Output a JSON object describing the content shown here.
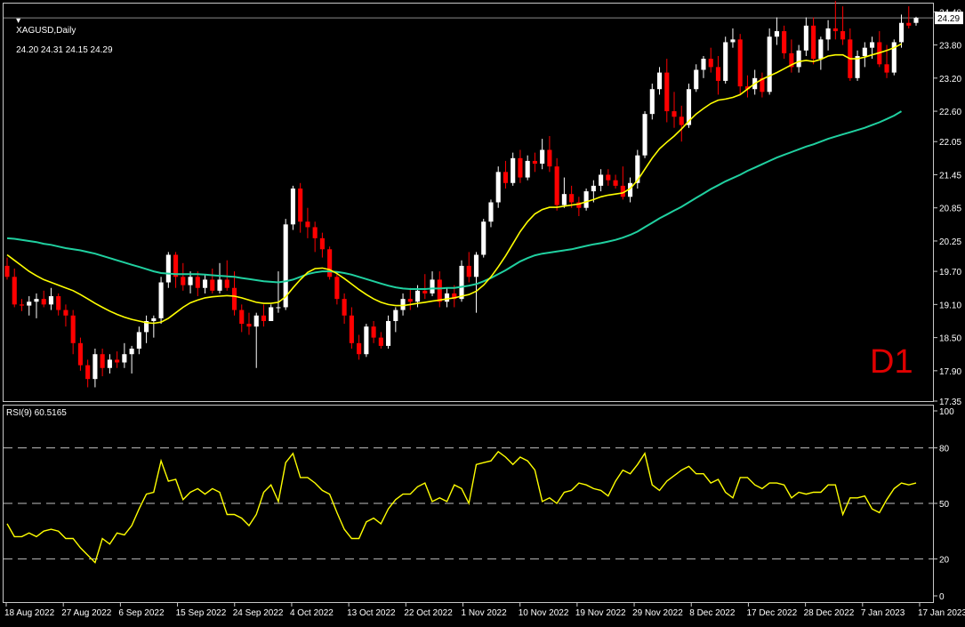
{
  "header": {
    "symbol": "XAGUSD,Daily",
    "ohlc": "24.20 24.31 24.15 24.29",
    "timeframe_mark": "D1"
  },
  "price_axis": {
    "ticks": [
      "24.40",
      "23.80",
      "23.20",
      "22.60",
      "22.05",
      "21.45",
      "20.85",
      "20.25",
      "19.70",
      "19.10",
      "18.50",
      "17.90",
      "17.35"
    ],
    "current_price": "24.29"
  },
  "rsi_panel": {
    "title": "RSI(9) 60.5165",
    "ticks": [
      "100",
      "80",
      "50",
      "20",
      "0"
    ]
  },
  "date_axis": [
    "18 Aug 2022",
    "27 Aug 2022",
    "6 Sep 2022",
    "15 Sep 2022",
    "24 Sep 2022",
    "4 Oct 2022",
    "13 Oct 2022",
    "22 Oct 2022",
    "1 Nov 2022",
    "10 Nov 2022",
    "19 Nov 2022",
    "29 Nov 2022",
    "8 Dec 2022",
    "17 Dec 2022",
    "28 Dec 2022",
    "7 Jan 2023",
    "17 Jan 2023"
  ],
  "colors": {
    "background": "#000000",
    "bull_candle": "#ffffff",
    "bear_candle": "#ff0000",
    "ma_fast": "#ffff00",
    "ma_slow": "#20d0a0",
    "rsi": "#ffff00",
    "grid_dash": "#c0c0c0",
    "axis_text": "#ffffff",
    "timeframe_mark": "#e00000"
  },
  "chart_data": {
    "type": "candlestick",
    "x_labels": [
      "18 Aug 2022",
      "27 Aug 2022",
      "6 Sep 2022",
      "15 Sep 2022",
      "24 Sep 2022",
      "4 Oct 2022",
      "13 Oct 2022",
      "22 Oct 2022",
      "1 Nov 2022",
      "10 Nov 2022",
      "19 Nov 2022",
      "29 Nov 2022",
      "8 Dec 2022",
      "17 Dec 2022",
      "28 Dec 2022",
      "7 Jan 2023",
      "17 Jan 2023"
    ],
    "ylim": [
      17.35,
      24.55
    ],
    "candles": [
      {
        "o": 19.8,
        "h": 19.95,
        "l": 19.55,
        "c": 19.6
      },
      {
        "o": 19.6,
        "h": 19.75,
        "l": 19.05,
        "c": 19.1
      },
      {
        "o": 19.1,
        "h": 19.2,
        "l": 18.98,
        "c": 19.08
      },
      {
        "o": 19.08,
        "h": 19.25,
        "l": 18.9,
        "c": 19.15
      },
      {
        "o": 19.15,
        "h": 19.3,
        "l": 18.85,
        "c": 19.2
      },
      {
        "o": 19.2,
        "h": 19.35,
        "l": 19.05,
        "c": 19.1
      },
      {
        "o": 19.1,
        "h": 19.4,
        "l": 19.0,
        "c": 19.25
      },
      {
        "o": 19.25,
        "h": 19.3,
        "l": 18.9,
        "c": 19.0
      },
      {
        "o": 19.0,
        "h": 19.1,
        "l": 18.7,
        "c": 18.9
      },
      {
        "o": 18.9,
        "h": 19.0,
        "l": 18.2,
        "c": 18.4
      },
      {
        "o": 18.4,
        "h": 18.5,
        "l": 17.9,
        "c": 18.0
      },
      {
        "o": 18.0,
        "h": 18.1,
        "l": 17.6,
        "c": 17.75
      },
      {
        "o": 17.75,
        "h": 18.3,
        "l": 17.6,
        "c": 18.2
      },
      {
        "o": 18.2,
        "h": 18.3,
        "l": 17.8,
        "c": 17.95
      },
      {
        "o": 17.95,
        "h": 18.2,
        "l": 17.85,
        "c": 18.1
      },
      {
        "o": 18.1,
        "h": 18.25,
        "l": 17.95,
        "c": 18.05
      },
      {
        "o": 18.05,
        "h": 18.4,
        "l": 17.95,
        "c": 18.2
      },
      {
        "o": 18.2,
        "h": 18.35,
        "l": 17.85,
        "c": 18.3
      },
      {
        "o": 18.3,
        "h": 18.7,
        "l": 18.2,
        "c": 18.6
      },
      {
        "o": 18.6,
        "h": 18.9,
        "l": 18.4,
        "c": 18.8
      },
      {
        "o": 18.8,
        "h": 18.9,
        "l": 18.5,
        "c": 18.85
      },
      {
        "o": 18.85,
        "h": 19.6,
        "l": 18.75,
        "c": 19.5
      },
      {
        "o": 19.5,
        "h": 20.05,
        "l": 19.4,
        "c": 20.0
      },
      {
        "o": 20.0,
        "h": 20.05,
        "l": 19.4,
        "c": 19.6
      },
      {
        "o": 19.6,
        "h": 19.85,
        "l": 19.35,
        "c": 19.45
      },
      {
        "o": 19.45,
        "h": 19.7,
        "l": 19.3,
        "c": 19.6
      },
      {
        "o": 19.6,
        "h": 19.7,
        "l": 19.25,
        "c": 19.4
      },
      {
        "o": 19.4,
        "h": 19.65,
        "l": 19.3,
        "c": 19.55
      },
      {
        "o": 19.55,
        "h": 19.75,
        "l": 19.3,
        "c": 19.35
      },
      {
        "o": 19.35,
        "h": 19.85,
        "l": 19.3,
        "c": 19.55
      },
      {
        "o": 19.55,
        "h": 19.9,
        "l": 19.35,
        "c": 19.4
      },
      {
        "o": 19.4,
        "h": 19.7,
        "l": 18.9,
        "c": 19.0
      },
      {
        "o": 19.0,
        "h": 19.1,
        "l": 18.6,
        "c": 18.75
      },
      {
        "o": 18.75,
        "h": 18.95,
        "l": 18.55,
        "c": 18.7
      },
      {
        "o": 18.7,
        "h": 18.95,
        "l": 17.95,
        "c": 18.9
      },
      {
        "o": 18.9,
        "h": 19.1,
        "l": 18.7,
        "c": 18.8
      },
      {
        "o": 18.8,
        "h": 19.1,
        "l": 18.8,
        "c": 19.05
      },
      {
        "o": 19.05,
        "h": 19.7,
        "l": 18.95,
        "c": 19.05
      },
      {
        "o": 19.05,
        "h": 20.65,
        "l": 19.0,
        "c": 20.55
      },
      {
        "o": 20.55,
        "h": 21.25,
        "l": 20.45,
        "c": 21.2
      },
      {
        "o": 21.2,
        "h": 21.3,
        "l": 20.4,
        "c": 20.6
      },
      {
        "o": 20.6,
        "h": 20.85,
        "l": 20.3,
        "c": 20.5
      },
      {
        "o": 20.5,
        "h": 20.6,
        "l": 20.05,
        "c": 20.3
      },
      {
        "o": 20.3,
        "h": 20.4,
        "l": 19.95,
        "c": 20.1
      },
      {
        "o": 20.1,
        "h": 20.15,
        "l": 19.55,
        "c": 19.6
      },
      {
        "o": 19.6,
        "h": 19.7,
        "l": 19.1,
        "c": 19.2
      },
      {
        "o": 19.2,
        "h": 19.3,
        "l": 18.75,
        "c": 18.9
      },
      {
        "o": 18.9,
        "h": 19.05,
        "l": 18.3,
        "c": 18.4
      },
      {
        "o": 18.4,
        "h": 18.55,
        "l": 18.1,
        "c": 18.2
      },
      {
        "o": 18.2,
        "h": 18.75,
        "l": 18.15,
        "c": 18.7
      },
      {
        "o": 18.7,
        "h": 18.8,
        "l": 18.4,
        "c": 18.5
      },
      {
        "o": 18.5,
        "h": 18.6,
        "l": 18.3,
        "c": 18.35
      },
      {
        "o": 18.35,
        "h": 18.9,
        "l": 18.3,
        "c": 18.8
      },
      {
        "o": 18.8,
        "h": 19.05,
        "l": 18.6,
        "c": 19.0
      },
      {
        "o": 19.0,
        "h": 19.3,
        "l": 18.9,
        "c": 19.2
      },
      {
        "o": 19.2,
        "h": 19.4,
        "l": 19.0,
        "c": 19.15
      },
      {
        "o": 19.15,
        "h": 19.45,
        "l": 19.05,
        "c": 19.35
      },
      {
        "o": 19.35,
        "h": 19.65,
        "l": 19.2,
        "c": 19.3
      },
      {
        "o": 19.3,
        "h": 19.7,
        "l": 19.25,
        "c": 19.55
      },
      {
        "o": 19.55,
        "h": 19.7,
        "l": 19.05,
        "c": 19.15
      },
      {
        "o": 19.15,
        "h": 19.4,
        "l": 19.05,
        "c": 19.3
      },
      {
        "o": 19.3,
        "h": 19.45,
        "l": 19.05,
        "c": 19.2
      },
      {
        "o": 19.2,
        "h": 19.9,
        "l": 19.15,
        "c": 19.8
      },
      {
        "o": 19.8,
        "h": 20.05,
        "l": 19.5,
        "c": 19.6
      },
      {
        "o": 19.6,
        "h": 20.05,
        "l": 18.95,
        "c": 20.0
      },
      {
        "o": 20.0,
        "h": 20.65,
        "l": 19.95,
        "c": 20.6
      },
      {
        "o": 20.6,
        "h": 21.0,
        "l": 20.5,
        "c": 20.95
      },
      {
        "o": 20.95,
        "h": 21.6,
        "l": 20.85,
        "c": 21.5
      },
      {
        "o": 21.5,
        "h": 21.7,
        "l": 21.2,
        "c": 21.3
      },
      {
        "o": 21.3,
        "h": 21.85,
        "l": 21.25,
        "c": 21.75
      },
      {
        "o": 21.75,
        "h": 21.9,
        "l": 21.3,
        "c": 21.4
      },
      {
        "o": 21.4,
        "h": 21.8,
        "l": 21.35,
        "c": 21.7
      },
      {
        "o": 21.7,
        "h": 21.85,
        "l": 21.5,
        "c": 21.65
      },
      {
        "o": 21.65,
        "h": 22.1,
        "l": 21.55,
        "c": 21.9
      },
      {
        "o": 21.9,
        "h": 22.15,
        "l": 21.5,
        "c": 21.6
      },
      {
        "o": 21.6,
        "h": 21.75,
        "l": 20.8,
        "c": 20.9
      },
      {
        "o": 20.9,
        "h": 21.4,
        "l": 20.85,
        "c": 21.1
      },
      {
        "o": 21.1,
        "h": 21.25,
        "l": 20.85,
        "c": 20.95
      },
      {
        "o": 20.95,
        "h": 21.05,
        "l": 20.7,
        "c": 20.85
      },
      {
        "o": 20.85,
        "h": 21.2,
        "l": 20.8,
        "c": 21.15
      },
      {
        "o": 21.15,
        "h": 21.35,
        "l": 20.95,
        "c": 21.25
      },
      {
        "o": 21.25,
        "h": 21.55,
        "l": 21.15,
        "c": 21.45
      },
      {
        "o": 21.45,
        "h": 21.55,
        "l": 21.25,
        "c": 21.35
      },
      {
        "o": 21.35,
        "h": 21.45,
        "l": 21.2,
        "c": 21.25
      },
      {
        "o": 21.25,
        "h": 21.6,
        "l": 21.0,
        "c": 21.05
      },
      {
        "o": 21.05,
        "h": 21.4,
        "l": 20.95,
        "c": 21.3
      },
      {
        "o": 21.3,
        "h": 21.9,
        "l": 21.2,
        "c": 21.8
      },
      {
        "o": 21.8,
        "h": 22.6,
        "l": 21.75,
        "c": 22.55
      },
      {
        "o": 22.55,
        "h": 23.1,
        "l": 22.45,
        "c": 23.0
      },
      {
        "o": 23.0,
        "h": 23.4,
        "l": 22.9,
        "c": 23.3
      },
      {
        "o": 23.3,
        "h": 23.55,
        "l": 22.4,
        "c": 22.6
      },
      {
        "o": 22.6,
        "h": 22.95,
        "l": 22.3,
        "c": 22.5
      },
      {
        "o": 22.5,
        "h": 22.7,
        "l": 22.05,
        "c": 22.35
      },
      {
        "o": 22.35,
        "h": 23.1,
        "l": 22.3,
        "c": 23.0
      },
      {
        "o": 23.0,
        "h": 23.45,
        "l": 22.95,
        "c": 23.35
      },
      {
        "o": 23.35,
        "h": 23.6,
        "l": 23.2,
        "c": 23.55
      },
      {
        "o": 23.55,
        "h": 23.75,
        "l": 23.3,
        "c": 23.4
      },
      {
        "o": 23.4,
        "h": 23.6,
        "l": 22.9,
        "c": 23.15
      },
      {
        "o": 23.15,
        "h": 23.95,
        "l": 23.1,
        "c": 23.85
      },
      {
        "o": 23.85,
        "h": 24.1,
        "l": 23.75,
        "c": 23.9
      },
      {
        "o": 23.9,
        "h": 24.0,
        "l": 22.9,
        "c": 23.05
      },
      {
        "o": 23.05,
        "h": 23.25,
        "l": 22.85,
        "c": 23.0
      },
      {
        "o": 23.0,
        "h": 23.35,
        "l": 22.9,
        "c": 23.2
      },
      {
        "o": 23.2,
        "h": 23.3,
        "l": 22.85,
        "c": 22.95
      },
      {
        "o": 22.95,
        "h": 24.1,
        "l": 22.9,
        "c": 23.95
      },
      {
        "o": 23.95,
        "h": 24.3,
        "l": 23.8,
        "c": 24.05
      },
      {
        "o": 24.05,
        "h": 24.15,
        "l": 23.55,
        "c": 23.65
      },
      {
        "o": 23.65,
        "h": 23.9,
        "l": 23.3,
        "c": 23.4
      },
      {
        "o": 23.4,
        "h": 23.8,
        "l": 23.3,
        "c": 23.7
      },
      {
        "o": 23.7,
        "h": 24.3,
        "l": 23.6,
        "c": 24.15
      },
      {
        "o": 24.15,
        "h": 24.3,
        "l": 23.45,
        "c": 23.55
      },
      {
        "o": 23.55,
        "h": 23.95,
        "l": 23.35,
        "c": 23.9
      },
      {
        "o": 23.9,
        "h": 24.25,
        "l": 23.7,
        "c": 24.1
      },
      {
        "o": 24.1,
        "h": 24.6,
        "l": 23.9,
        "c": 24.05
      },
      {
        "o": 24.05,
        "h": 24.5,
        "l": 23.8,
        "c": 23.9
      },
      {
        "o": 23.9,
        "h": 24.1,
        "l": 23.15,
        "c": 23.2
      },
      {
        "o": 23.2,
        "h": 23.7,
        "l": 23.15,
        "c": 23.6
      },
      {
        "o": 23.6,
        "h": 23.85,
        "l": 23.4,
        "c": 23.75
      },
      {
        "o": 23.75,
        "h": 23.95,
        "l": 23.55,
        "c": 23.85
      },
      {
        "o": 23.85,
        "h": 24.05,
        "l": 23.4,
        "c": 23.45
      },
      {
        "o": 23.45,
        "h": 23.8,
        "l": 23.2,
        "c": 23.3
      },
      {
        "o": 23.3,
        "h": 23.9,
        "l": 23.25,
        "c": 23.85
      },
      {
        "o": 23.85,
        "h": 24.35,
        "l": 23.75,
        "c": 24.2
      },
      {
        "o": 24.2,
        "h": 24.5,
        "l": 24.1,
        "c": 24.15
      },
      {
        "o": 24.2,
        "h": 24.31,
        "l": 24.15,
        "c": 24.29
      }
    ],
    "ma_fast": [
      20.0,
      19.9,
      19.8,
      19.7,
      19.62,
      19.55,
      19.5,
      19.45,
      19.4,
      19.35,
      19.28,
      19.2,
      19.12,
      19.05,
      18.98,
      18.92,
      18.87,
      18.83,
      18.8,
      18.77,
      18.76,
      18.78,
      18.85,
      18.95,
      19.05,
      19.13,
      19.18,
      19.22,
      19.24,
      19.25,
      19.26,
      19.25,
      19.22,
      19.18,
      19.14,
      19.12,
      19.12,
      19.14,
      19.24,
      19.4,
      19.55,
      19.68,
      19.75,
      19.76,
      19.73,
      19.66,
      19.57,
      19.47,
      19.37,
      19.28,
      19.2,
      19.14,
      19.1,
      19.08,
      19.08,
      19.1,
      19.12,
      19.14,
      19.16,
      19.18,
      19.2,
      19.22,
      19.25,
      19.28,
      19.34,
      19.45,
      19.6,
      19.78,
      19.98,
      20.2,
      20.42,
      20.6,
      20.74,
      20.82,
      20.86,
      20.86,
      20.88,
      20.9,
      20.92,
      20.96,
      21.0,
      21.05,
      21.08,
      21.1,
      21.12,
      21.2,
      21.35,
      21.55,
      21.75,
      21.92,
      22.04,
      22.15,
      22.28,
      22.42,
      22.55,
      22.65,
      22.74,
      22.8,
      22.82,
      22.85,
      22.9,
      23.0,
      23.1,
      23.18,
      23.24,
      23.3,
      23.37,
      23.44,
      23.5,
      23.52,
      23.5,
      23.54,
      23.6,
      23.62,
      23.62,
      23.55,
      23.55,
      23.58,
      23.62,
      23.66,
      23.7,
      23.75,
      23.82
    ],
    "ma_slow": [
      20.3,
      20.29,
      20.27,
      20.25,
      20.23,
      20.2,
      20.18,
      20.15,
      20.12,
      20.1,
      20.08,
      20.05,
      20.02,
      19.98,
      19.94,
      19.9,
      19.86,
      19.82,
      19.78,
      19.74,
      19.7,
      19.67,
      19.66,
      19.65,
      19.65,
      19.65,
      19.65,
      19.64,
      19.63,
      19.62,
      19.61,
      19.6,
      19.58,
      19.56,
      19.54,
      19.52,
      19.51,
      19.5,
      19.52,
      19.55,
      19.6,
      19.65,
      19.68,
      19.7,
      19.7,
      19.69,
      19.67,
      19.64,
      19.6,
      19.56,
      19.52,
      19.48,
      19.44,
      19.41,
      19.39,
      19.38,
      19.38,
      19.38,
      19.39,
      19.39,
      19.4,
      19.4,
      19.42,
      19.44,
      19.47,
      19.52,
      19.58,
      19.65,
      19.72,
      19.8,
      19.88,
      19.94,
      19.99,
      20.02,
      20.04,
      20.06,
      20.08,
      20.1,
      20.13,
      20.16,
      20.19,
      20.21,
      20.24,
      20.27,
      20.31,
      20.36,
      20.42,
      20.5,
      20.58,
      20.66,
      20.73,
      20.8,
      20.87,
      20.95,
      21.03,
      21.11,
      21.19,
      21.26,
      21.33,
      21.39,
      21.45,
      21.52,
      21.58,
      21.64,
      21.7,
      21.76,
      21.81,
      21.86,
      21.91,
      21.96,
      22.0,
      22.05,
      22.1,
      22.14,
      22.18,
      22.22,
      22.26,
      22.3,
      22.35,
      22.4,
      22.46,
      22.52,
      22.6
    ],
    "rsi": {
      "name": "RSI(9)",
      "ylim": [
        0,
        100
      ],
      "levels": [
        20,
        50,
        80
      ],
      "values": [
        39,
        32,
        32,
        34,
        32,
        35,
        36,
        35,
        31,
        31,
        26,
        22,
        18,
        31,
        28,
        34,
        33,
        38,
        47,
        55,
        56,
        73,
        62,
        63,
        52,
        56,
        58,
        55,
        58,
        56,
        44,
        44,
        42,
        38,
        44,
        56,
        60,
        51,
        72,
        77,
        64,
        64,
        61,
        57,
        55,
        45,
        36,
        31,
        31,
        40,
        42,
        39,
        47,
        52,
        55,
        55,
        59,
        61,
        51,
        53,
        51,
        60,
        58,
        50,
        71,
        72,
        73,
        78,
        75,
        71,
        75,
        73,
        68,
        51,
        53,
        50,
        56,
        57,
        61,
        60,
        58,
        57,
        54,
        62,
        68,
        66,
        71,
        77,
        60,
        57,
        62,
        65,
        68,
        70,
        66,
        66,
        61,
        63,
        56,
        53,
        64,
        64,
        60,
        58,
        61,
        61,
        60,
        53,
        56,
        55,
        56,
        56,
        60,
        60,
        44,
        53,
        53,
        54,
        47,
        45,
        52,
        58,
        61,
        60,
        61
      ]
    }
  }
}
